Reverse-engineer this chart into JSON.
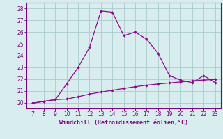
{
  "xlabel": "Windchill (Refroidissement éolien,°C)",
  "x_values": [
    7,
    8,
    9,
    10,
    11,
    12,
    13,
    14,
    15,
    16,
    17,
    18,
    19,
    20,
    21,
    22,
    23
  ],
  "y_main": [
    19.95,
    20.1,
    20.25,
    21.6,
    23.0,
    24.7,
    27.8,
    27.7,
    25.7,
    26.0,
    25.4,
    24.2,
    22.3,
    21.9,
    21.7,
    22.3,
    21.7
  ],
  "y_secondary": [
    19.95,
    20.1,
    20.25,
    20.3,
    20.5,
    20.72,
    20.9,
    21.05,
    21.2,
    21.35,
    21.48,
    21.58,
    21.67,
    21.76,
    21.85,
    21.92,
    21.97
  ],
  "line_color": "#990099",
  "bg_color": "#d8eeee",
  "grid_color": "#aacccc",
  "axis_color": "#880088",
  "ylim": [
    19.5,
    28.5
  ],
  "yticks": [
    20,
    21,
    22,
    23,
    24,
    25,
    26,
    27,
    28
  ],
  "xlim": [
    6.5,
    23.5
  ],
  "xticks": [
    7,
    8,
    9,
    10,
    11,
    12,
    13,
    14,
    15,
    16,
    17,
    18,
    19,
    20,
    21,
    22,
    23
  ]
}
